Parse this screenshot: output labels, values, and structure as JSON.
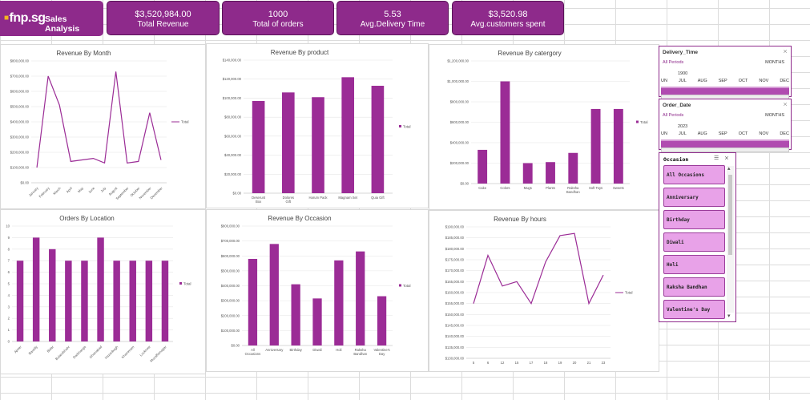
{
  "header": {
    "logo": "fnp.sg",
    "title": "Sales Analysis",
    "kpis": [
      {
        "value": "$3,520,984.00",
        "label": "Total Revenue"
      },
      {
        "value": "1000",
        "label": "Total of orders"
      },
      {
        "value": "5.53",
        "label": "Avg.Delivery Time"
      },
      {
        "value": "$3,520.98",
        "label": "Avg.customers spent"
      }
    ]
  },
  "colors": {
    "accent": "#8e2a8b",
    "bar": "#9b2c96",
    "slicer_button": "#e8a2e8"
  },
  "charts": [
    {
      "key": "month",
      "title": "Revenue By Month",
      "type": "line",
      "legend": "Total",
      "categories": [
        "January",
        "February",
        "March",
        "April",
        "May",
        "June",
        "July",
        "August",
        "September",
        "October",
        "November",
        "December"
      ],
      "values": [
        100000,
        700000,
        510000,
        140000,
        150000,
        160000,
        130000,
        730000,
        130000,
        140000,
        460000,
        150000
      ],
      "ylim": [
        0,
        800000
      ],
      "yticks": [
        "$0.00",
        "$100,000.00",
        "$200,000.00",
        "$300,000.00",
        "$400,000.00",
        "$500,000.00",
        "$600,000.00",
        "$700,000.00",
        "$800,000.00"
      ]
    },
    {
      "key": "product",
      "title": "Revenue By product",
      "type": "bar",
      "legend": "Total",
      "categories": [
        "Deserunt Box",
        "Dolores Gift",
        "Harum Pack",
        "Magnam Set",
        "Quia Gift"
      ],
      "values": [
        97000,
        106000,
        101000,
        122000,
        113000
      ],
      "ylim": [
        0,
        140000
      ],
      "yticks": [
        "$0.00",
        "$20,000.00",
        "$40,000.00",
        "$60,000.00",
        "$80,000.00",
        "$100,000.00",
        "$120,000.00",
        "$140,000.00"
      ]
    },
    {
      "key": "category",
      "title": "Revenue By catergory",
      "type": "bar",
      "legend": "Total",
      "categories": [
        "Cake",
        "Colors",
        "Mugs",
        "Plants",
        "Raksha Bandhan",
        "Soft Toys",
        "Sweets"
      ],
      "values": [
        330000,
        1000000,
        200000,
        210000,
        300000,
        730000,
        730000
      ],
      "ylim": [
        0,
        1200000
      ],
      "yticks": [
        "$0.00",
        "$200,000.00",
        "$400,000.00",
        "$600,000.00",
        "$800,000.00",
        "$1,000,000.00",
        "$1,200,000.00"
      ]
    },
    {
      "key": "location",
      "title": "Orders By Location",
      "type": "bar",
      "legend": "Total",
      "categories": [
        "Ajmer",
        "Bareilly",
        "Bidar",
        "Bulandshahr",
        "Darbhanga",
        "Ghaziabad",
        "Hazaribagh",
        "Khammam",
        "Lucknow",
        "Muzaffarnagar"
      ],
      "values": [
        7,
        9,
        8,
        7,
        7,
        9,
        7,
        7,
        7,
        7
      ],
      "ylim": [
        0,
        10
      ],
      "yticks": [
        "0",
        "1",
        "2",
        "3",
        "4",
        "5",
        "6",
        "7",
        "8",
        "9",
        "10"
      ]
    },
    {
      "key": "occasion",
      "title": "Revenue By Occasion",
      "type": "bar",
      "legend": "Total",
      "categories": [
        "All Occasions",
        "Anniversary",
        "Birthday",
        "Diwali",
        "Holi",
        "Raksha Bandhan",
        "Valentine's Day"
      ],
      "values": [
        580000,
        680000,
        410000,
        315000,
        570000,
        630000,
        330000
      ],
      "ylim": [
        0,
        800000
      ],
      "yticks": [
        "$0.00",
        "$100,000.00",
        "$200,000.00",
        "$300,000.00",
        "$400,000.00",
        "$500,000.00",
        "$600,000.00",
        "$700,000.00",
        "$800,000.00"
      ]
    },
    {
      "key": "hours",
      "title": "Revenue By hours",
      "type": "line",
      "legend": "Total",
      "categories": [
        "5",
        "6",
        "12",
        "15",
        "17",
        "18",
        "19",
        "20",
        "21",
        "23"
      ],
      "values": [
        155000,
        177000,
        163000,
        165000,
        155000,
        174000,
        186000,
        187000,
        155000,
        168000
      ],
      "ylim": [
        130000,
        190000
      ],
      "yticks": [
        "$130,000.00",
        "$135,000.00",
        "$140,000.00",
        "$145,000.00",
        "$150,000.00",
        "$155,000.00",
        "$160,000.00",
        "$165,000.00",
        "$170,000.00",
        "$175,000.00",
        "$180,000.00",
        "$185,000.00",
        "$190,000.00"
      ]
    }
  ],
  "slicers": {
    "delivery": {
      "title": "Delivery_Time",
      "all": "All Periods",
      "unit": "MONTHS",
      "year": "1900",
      "months": [
        "UN",
        "JUL",
        "AUG",
        "SEP",
        "OCT",
        "NOV",
        "DEC"
      ]
    },
    "order": {
      "title": "Order_Date",
      "all": "All Periods",
      "unit": "MONTHS",
      "year": "2023",
      "months": [
        "UN",
        "JUL",
        "AUG",
        "SEP",
        "OCT",
        "NOV",
        "DEC"
      ]
    },
    "occasion": {
      "title": "Occasion",
      "items": [
        "All Occasions",
        "Anniversary",
        "Birthday",
        "Diwali",
        "Holi",
        "Raksha Bandhan",
        "Valentine's Day"
      ]
    }
  }
}
